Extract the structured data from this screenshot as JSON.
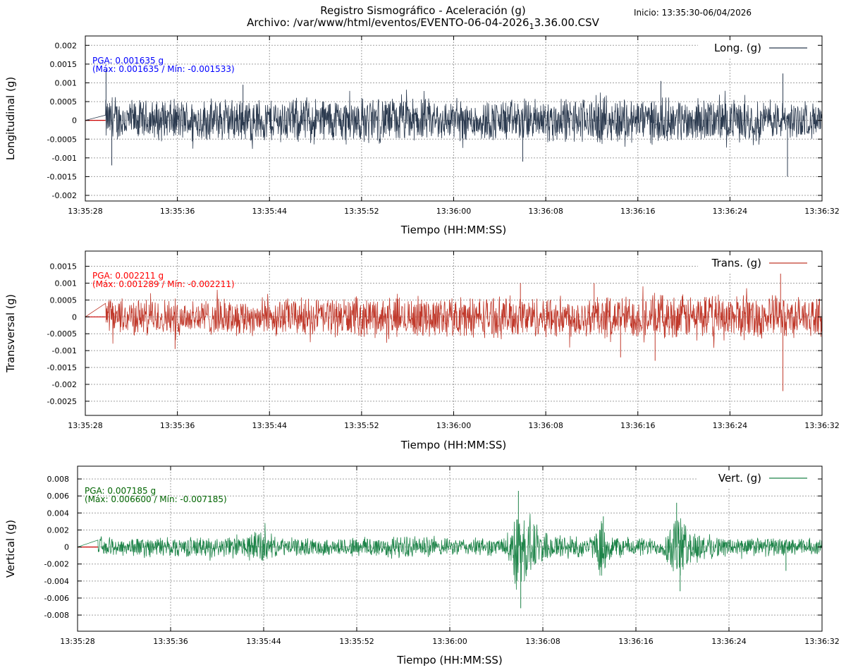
{
  "header": {
    "title": "Registro Sismográfico - Aceleración (g)",
    "file_prefix": "Archivo: /var/www/html/eventos/EVENTO-06-04-2026",
    "file_sub": "1",
    "file_suffix": "3.36.00.CSV",
    "start": "Inicio: 13:35:30-06/04/2026"
  },
  "chart_data": [
    {
      "type": "line",
      "series": [
        {
          "name": "Long. (g)",
          "color": "#2b3a4f"
        }
      ],
      "ylabel": "Longitudinal (g)",
      "xlabel": "Tiempo (HH:MM:SS)",
      "ylim": [
        -0.00215,
        0.00225
      ],
      "yticks": [
        {
          "v": 0.002,
          "l": "0.002"
        },
        {
          "v": 0.0015,
          "l": "0.0015"
        },
        {
          "v": 0.001,
          "l": "0.001"
        },
        {
          "v": 0.0005,
          "l": "0.0005"
        },
        {
          "v": 0,
          "l": "0"
        },
        {
          "v": -0.0005,
          "l": "-0.0005"
        },
        {
          "v": -0.001,
          "l": "-0.001"
        },
        {
          "v": -0.0015,
          "l": "-0.0015"
        },
        {
          "v": -0.002,
          "l": "-0.002"
        }
      ],
      "xticks": [
        "13:35:28",
        "13:35:36",
        "13:35:44",
        "13:35:52",
        "13:36:00",
        "13:36:08",
        "13:36:16",
        "13:36:24",
        "13:36:32"
      ],
      "annotation": [
        "PGA: 0.001635 g",
        "(Máx: 0.001635 / Mín: -0.001533)"
      ],
      "annotation_color": "#0000ff",
      "pga": 0.001635,
      "max": 0.001635,
      "min": -0.001533,
      "envelope": [
        [
          1.75,
          0.00065
        ],
        [
          5,
          0.0006
        ],
        [
          25,
          0.0007
        ],
        [
          33,
          0.0006
        ],
        [
          45,
          0.0007
        ],
        [
          58,
          0.0006
        ],
        [
          64,
          0.0005
        ]
      ],
      "spikes": [
        [
          1.8,
          0.00135
        ],
        [
          2.3,
          -0.0012
        ],
        [
          13.7,
          0.00095
        ],
        [
          38,
          -0.0011
        ],
        [
          50,
          0.00105
        ],
        [
          60.6,
          0.00125
        ],
        [
          61,
          -0.0015
        ]
      ]
    },
    {
      "type": "line",
      "series": [
        {
          "name": "Trans. (g)",
          "color": "#c0392b"
        }
      ],
      "ylabel": "Transversal (g)",
      "xlabel": "Tiempo (HH:MM:SS)",
      "ylim": [
        -0.00292,
        0.00195
      ],
      "yticks": [
        {
          "v": 0.0015,
          "l": "0.0015"
        },
        {
          "v": 0.001,
          "l": "0.001"
        },
        {
          "v": 0.0005,
          "l": "0.0005"
        },
        {
          "v": 0,
          "l": "0"
        },
        {
          "v": -0.0005,
          "l": "-0.0005"
        },
        {
          "v": -0.001,
          "l": "-0.001"
        },
        {
          "v": -0.0015,
          "l": "-0.0015"
        },
        {
          "v": -0.002,
          "l": "-0.002"
        },
        {
          "v": -0.0025,
          "l": "-0.0025"
        }
      ],
      "xticks": [
        "13:35:28",
        "13:35:36",
        "13:35:44",
        "13:35:52",
        "13:36:00",
        "13:36:08",
        "13:36:16",
        "13:36:24",
        "13:36:32"
      ],
      "annotation": [
        "PGA: 0.002211 g",
        "(Máx: 0.001289 / Mín: -0.002211)"
      ],
      "annotation_color": "#ff0000",
      "pga": 0.002211,
      "max": 0.001289,
      "min": -0.002211,
      "envelope": [
        [
          1.75,
          0.0006
        ],
        [
          10,
          0.0006
        ],
        [
          25,
          0.00065
        ],
        [
          45,
          0.0007
        ],
        [
          58,
          0.00075
        ],
        [
          64,
          0.0006
        ]
      ],
      "spikes": [
        [
          7.8,
          -0.00095
        ],
        [
          37.8,
          0.001
        ],
        [
          44.2,
          0.001
        ],
        [
          46.5,
          -0.0012
        ],
        [
          49.5,
          -0.0013
        ],
        [
          60.4,
          0.00128
        ],
        [
          60.6,
          -0.0022
        ]
      ]
    },
    {
      "type": "line",
      "series": [
        {
          "name": "Vert. (g)",
          "color": "#1e8449"
        }
      ],
      "ylabel": "Vertical (g)",
      "xlabel": "Tiempo (HH:MM:SS)",
      "ylim": [
        -0.0099,
        0.0095
      ],
      "yticks": [
        {
          "v": 0.008,
          "l": "0.008"
        },
        {
          "v": 0.006,
          "l": "0.006"
        },
        {
          "v": 0.004,
          "l": "0.004"
        },
        {
          "v": 0.002,
          "l": "0.002"
        },
        {
          "v": 0,
          "l": "0"
        },
        {
          "v": -0.002,
          "l": "-0.002"
        },
        {
          "v": -0.004,
          "l": "-0.004"
        },
        {
          "v": -0.006,
          "l": "-0.006"
        },
        {
          "v": -0.008,
          "l": "-0.008"
        }
      ],
      "xticks": [
        "13:35:28",
        "13:35:36",
        "13:35:44",
        "13:35:52",
        "13:36:00",
        "13:36:08",
        "13:36:16",
        "13:36:24",
        "13:36:32"
      ],
      "annotation": [
        "PGA: 0.007185 g",
        "(Máx: 0.006600 / Mín: -0.007185)"
      ],
      "annotation_color": "#006400",
      "pga": 0.007185,
      "max": 0.0066,
      "min": -0.007185,
      "envelope": [
        [
          1.75,
          0.0012
        ],
        [
          8,
          0.0013
        ],
        [
          14,
          0.0013
        ],
        [
          15.8,
          0.0025
        ],
        [
          17,
          0.0012
        ],
        [
          22,
          0.0011
        ],
        [
          25,
          0.0015
        ],
        [
          30,
          0.0014
        ],
        [
          31,
          0.0011
        ],
        [
          35,
          0.0012
        ],
        [
          36.8,
          0.0011
        ],
        [
          37.7,
          0.0055
        ],
        [
          38.8,
          0.0045
        ],
        [
          40,
          0.002
        ],
        [
          43,
          0.0015
        ],
        [
          44.4,
          0.0014
        ],
        [
          45,
          0.0038
        ],
        [
          46.2,
          0.0014
        ],
        [
          49,
          0.0012
        ],
        [
          50.3,
          0.0011
        ],
        [
          51.4,
          0.0048
        ],
        [
          52.5,
          0.0025
        ],
        [
          55,
          0.0013
        ],
        [
          60,
          0.0012
        ],
        [
          64,
          0.001
        ]
      ],
      "spikes": [
        [
          37.9,
          0.0066
        ],
        [
          38.1,
          -0.0072
        ],
        [
          45.2,
          0.0036
        ],
        [
          51.8,
          -0.0052
        ],
        [
          51.5,
          0.0052
        ],
        [
          60.9,
          -0.0028
        ]
      ]
    }
  ]
}
